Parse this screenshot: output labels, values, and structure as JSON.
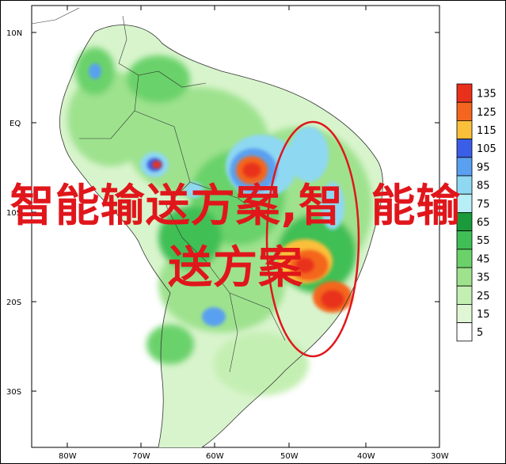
{
  "map": {
    "lat_labels": [
      "10N",
      "EQ",
      "10S",
      "20S",
      "30S"
    ],
    "lon_labels": [
      "80W",
      "70W",
      "60W",
      "50W",
      "40W",
      "30W"
    ]
  },
  "legend": {
    "levels": [
      {
        "value": "135",
        "color": "#e8301a"
      },
      {
        "value": "125",
        "color": "#f4661f"
      },
      {
        "value": "115",
        "color": "#fbc03a"
      },
      {
        "value": "105",
        "color": "#3a5fe6"
      },
      {
        "value": "95",
        "color": "#5aa0f0"
      },
      {
        "value": "85",
        "color": "#8ed8f2"
      },
      {
        "value": "75",
        "color": "#b8eef5"
      },
      {
        "value": "65",
        "color": "#1a9a3a"
      },
      {
        "value": "55",
        "color": "#3fbf55"
      },
      {
        "value": "45",
        "color": "#6bd26a"
      },
      {
        "value": "35",
        "color": "#9ee28e"
      },
      {
        "value": "25",
        "color": "#c4efb2"
      },
      {
        "value": "15",
        "color": "#e0f7d6"
      },
      {
        "value": "5",
        "color": "#ffffff"
      }
    ]
  },
  "overlay": {
    "line1": "智能输送方案,智",
    "line2": "能输送方案",
    "color": "#e0161b"
  }
}
